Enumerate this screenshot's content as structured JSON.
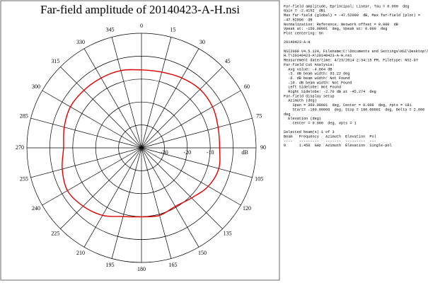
{
  "chart_data": {
    "type": "polar",
    "title": "Far-field amplitude of 20140423-A-H.nsi",
    "r_label": "dB",
    "rlim": [
      -40,
      10
    ],
    "rgrid": [
      -30,
      -20,
      -10,
      0
    ],
    "rticks": [
      -30,
      -20,
      -10
    ],
    "thetaticks": [
      0,
      15,
      30,
      45,
      60,
      75,
      90,
      105,
      120,
      135,
      150,
      165,
      180,
      195,
      210,
      225,
      240,
      255,
      270,
      285,
      300,
      315,
      330,
      345
    ],
    "series": [
      {
        "color": "#e00000",
        "theta": [
          0,
          15,
          30,
          45,
          60,
          75,
          90,
          105,
          120,
          135,
          150,
          165,
          180,
          195,
          210,
          225,
          240,
          255,
          270,
          285,
          300,
          315,
          330,
          345
        ],
        "values": [
          -6.0,
          -5.8,
          -4.8,
          -3.9,
          -4.2,
          -5.4,
          -5.9,
          -5.1,
          -6.4,
          -9.1,
          -10.5,
          -9.5,
          -9.9,
          -9.0,
          -6.0,
          -4.0,
          -2.7,
          -4.2,
          -6.0,
          -5.1,
          -4.2,
          -4.5,
          -4.8,
          -5.1
        ]
      }
    ],
    "info_blocks": [
      [
        "Far-field amplitude, Eprincipal; Linear, Tau = 0.000  deg",
        "Gain = -2.4152  dBi",
        "Max far-field (global) = -47.52090  dB, Max far-field (plot) =",
        "-47.52096  dB",
        "Normalization: Reference, Network offset = 0.000  dB",
        "Vpeak at: -150.00001  deg, Vpeak at: 0.000  deg",
        "Plot centering: On"
      ],
      [
        "20140423-A-H"
      ],
      [
        "NSI2000 V4.5.124, Filename:C:\\Documents and Settings\\NSI\\Desktop\\T.",
        "H.T\\20140423-A\\20140423-A-H.nsi",
        "Measurement date/time: 4/23/2014 2:34:15 PM, Filetype: NSI-97",
        "Far-field Cut Analysis:",
        "  Avg value: -4.664 dB",
        "  -3. dB beam width: 93.22 deg",
        "  -6. dB beam width: Not Found",
        "  -10. dB beam width: Not Found",
        "  Left Sidelobe: Not Found",
        "  Right Sidelobe: -2.70 dB at -45.274  deg",
        "Far-field display setup",
        "  Azimuth (deg)",
        "    Span = 360.00001  deg, Center = 0.000  deg, #pts = 181",
        "    Start= -180.00000  deg, Stop = 180.00001  deg, Delta = 2.000",
        "deg",
        "  Elevation (deg)",
        "    Center = 0.000  deg, #pts = 1"
      ],
      [
        "Selected beam(s) 1 of 3",
        "Beam   Frequency   Azimuth  Elevation  Pol",
        "----   ---------   -------  ---------  ---",
        "0      1.450  GHz  Azimuth  Elevation  Single-pol"
      ]
    ]
  }
}
